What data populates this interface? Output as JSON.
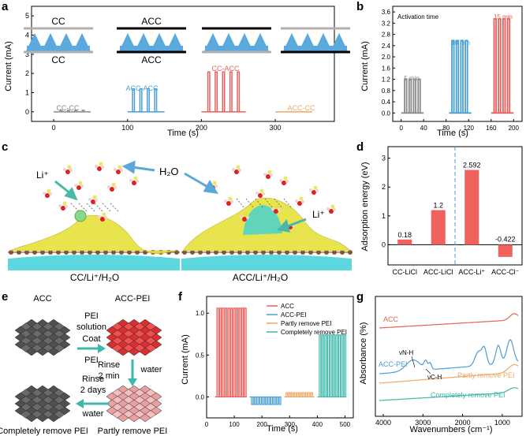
{
  "panel_labels": [
    "a",
    "b",
    "c",
    "d",
    "e",
    "f",
    "g"
  ],
  "colors": {
    "gray": "#8a8a8a",
    "blue": "#4a9fd4",
    "red": "#e8605c",
    "orange": "#f0a868",
    "teal": "#3eb8a8",
    "tri_blue": "#5ca9de",
    "yellow": "#e6e23a",
    "cyan": "#3fd0d8"
  },
  "panel_a": {
    "ylabel": "Current (mA)",
    "xlabel": "Time (s)",
    "legend_boxes": [
      {
        "top": "CC",
        "bottom": "CC",
        "top_color": "#b0b0b0",
        "bottom_color": "#b0b0b0"
      },
      {
        "top": "ACC",
        "bottom": "ACC",
        "top_color": "#000000",
        "bottom_color": "#000000"
      },
      {
        "top": "",
        "bottom": "",
        "top_color": "#000000",
        "bottom_color": "#b0b0b0"
      },
      {
        "top": "",
        "bottom": "",
        "top_color": "#b0b0b0",
        "bottom_color": "#000000"
      }
    ],
    "series_labels": [
      "CC-CC",
      "ACC-ACC",
      "CC-ACC",
      "ACC-CC"
    ]
  },
  "panel_b": {
    "ylabel": "Current (mA)",
    "xlabel": "Time (s)",
    "annotation": "Activation time",
    "series_labels": [
      "5 min",
      "10 min",
      "15 min"
    ]
  },
  "panel_c": {
    "water_label": "H₂O",
    "li_label_left": "Li⁺",
    "li_label_right": "Li⁺",
    "caption_left": "CC/Li⁺/H₂O",
    "caption_right": "ACC/Li⁺/H₂O"
  },
  "panel_d": {
    "ylabel": "Adsorption energy (eV)"
  },
  "panel_e": {
    "states": [
      "ACC",
      "ACC-PEI",
      "Partly remove PEI",
      "Completely remove PEI"
    ],
    "step1": [
      "PEI",
      "solution",
      "Coat",
      "PEI"
    ],
    "step2": [
      "Rinse",
      "2 min",
      "water"
    ],
    "step3": [
      "Rinse",
      "2 days",
      "water"
    ]
  },
  "panel_f": {
    "ylabel": "Current (mA)",
    "xlabel": "Time (s)"
  },
  "panel_g": {
    "ylabel": "Absorbance (%)",
    "xlabel": "Wavenumbers (cm⁻¹)",
    "annotations": [
      "νN-H",
      "νC-H"
    ],
    "curve_labels": [
      "ACC",
      "ACC-PEI",
      "Partly remove PEI",
      "Completely remove PEI"
    ]
  },
  "chart_data": [
    {
      "id": "a",
      "type": "line",
      "xlabel": "Time (s)",
      "ylabel": "Current (mA)",
      "xlim": [
        -30,
        380
      ],
      "ylim": [
        -0.5,
        5.5
      ],
      "xticks": [
        0,
        100,
        200,
        300
      ],
      "yticks": [
        0,
        1,
        2,
        3,
        4,
        5
      ],
      "series": [
        {
          "name": "CC-CC",
          "color": "#8a8a8a",
          "baseline_start": 0,
          "baseline_end": 50,
          "pulse_times": [
            10,
            20,
            30,
            40
          ],
          "peak": 0.08
        },
        {
          "name": "ACC-ACC",
          "color": "#4a9fd4",
          "baseline_start": 100,
          "baseline_end": 150,
          "pulse_times": [
            108,
            118,
            128,
            138
          ],
          "peak": 1.2
        },
        {
          "name": "CC-ACC",
          "color": "#e8605c",
          "baseline_start": 200,
          "baseline_end": 260,
          "pulse_times": [
            210,
            220,
            230,
            240,
            250
          ],
          "peak": 2.08
        },
        {
          "name": "ACC-CC",
          "color": "#f0a868",
          "baseline_start": 300,
          "baseline_end": 350,
          "pulse_times": [],
          "peak": 0
        }
      ]
    },
    {
      "id": "b",
      "type": "line",
      "xlabel": "Time (s)",
      "ylabel": "Current (mA)",
      "xlim": [
        -15,
        215
      ],
      "ylim": [
        -0.3,
        3.8
      ],
      "xticks": [
        0,
        40,
        80,
        120,
        160,
        200
      ],
      "yticks": [
        0,
        0.4,
        0.8,
        1.2,
        1.6,
        2.0,
        2.4,
        2.8,
        3.2,
        3.6
      ],
      "annotation": "Activation time",
      "series": [
        {
          "name": "5 min",
          "color": "#8a8a8a",
          "baseline_start": 0,
          "baseline_end": 40,
          "pulse_times": [
            8,
            16,
            24,
            32
          ],
          "peak": 1.2
        },
        {
          "name": "10 min",
          "color": "#4a9fd4",
          "baseline_start": 85,
          "baseline_end": 125,
          "pulse_times": [
            92,
            100,
            108,
            116
          ],
          "peak": 2.58
        },
        {
          "name": "15 min",
          "color": "#e8605c",
          "baseline_start": 160,
          "baseline_end": 200,
          "pulse_times": [
            167,
            175,
            183,
            191
          ],
          "peak": 3.35
        }
      ]
    },
    {
      "id": "d",
      "type": "bar",
      "ylabel": "Adsorption energy (eV)",
      "categories": [
        "CC-LiCl",
        "ACC-LiCl",
        "ACC-Li⁺",
        "ACC-Cl⁻"
      ],
      "values": [
        0.18,
        1.2,
        2.592,
        -0.422
      ],
      "value_labels": [
        "0.18",
        "1.2",
        "2.592",
        "-0.422"
      ],
      "ylim": [
        -0.7,
        3.4
      ],
      "yticks": [
        0,
        1,
        2,
        3
      ],
      "color": "#f0625e"
    },
    {
      "id": "f",
      "type": "line",
      "xlabel": "Time (s)",
      "ylabel": "Current (mA)",
      "xlim": [
        0,
        530
      ],
      "ylim": [
        -0.25,
        1.2
      ],
      "xticks": [
        0,
        100,
        200,
        300,
        400,
        500
      ],
      "yticks": [
        0.0,
        0.5,
        1.0
      ],
      "series": [
        {
          "name": "ACC",
          "color": "#e8605c",
          "baseline_start": 30,
          "baseline_end": 145,
          "pulse_times": [
            40,
            50,
            60,
            70,
            80,
            90,
            100,
            110,
            120,
            130,
            140
          ],
          "peak": 1.06
        },
        {
          "name": "ACC-PEI",
          "color": "#4a9fd4",
          "baseline_start": 155,
          "baseline_end": 270,
          "pulse_times": [
            165,
            175,
            185,
            195,
            205,
            215,
            225,
            235,
            245,
            255,
            265
          ],
          "peak": -0.09
        },
        {
          "name": "Partly remove PEI",
          "color": "#f0a868",
          "baseline_start": 280,
          "baseline_end": 390,
          "pulse_times": [
            290,
            300,
            310,
            320,
            330,
            340,
            350,
            360,
            370,
            380
          ],
          "peak": 0.05
        },
        {
          "name": "Completely remove PEI",
          "color": "#3eb8a8",
          "baseline_start": 400,
          "baseline_end": 505,
          "pulse_times": [
            410,
            420,
            430,
            440,
            450,
            460,
            470,
            480,
            490,
            500
          ],
          "peak": 0.74
        }
      ]
    },
    {
      "id": "g",
      "type": "line",
      "xlabel": "Wavenumbers (cm⁻¹)",
      "ylabel": "Absorbance (%)",
      "xlim": [
        4200,
        500
      ],
      "xticks": [
        4000,
        3000,
        2000,
        1000
      ],
      "series": [
        {
          "name": "ACC",
          "color": "#e8605c"
        },
        {
          "name": "ACC-PEI",
          "color": "#4a9fd4"
        },
        {
          "name": "Partly remove PEI",
          "color": "#f0a868"
        },
        {
          "name": "Completely remove PEI",
          "color": "#3eb8a8"
        }
      ]
    }
  ]
}
